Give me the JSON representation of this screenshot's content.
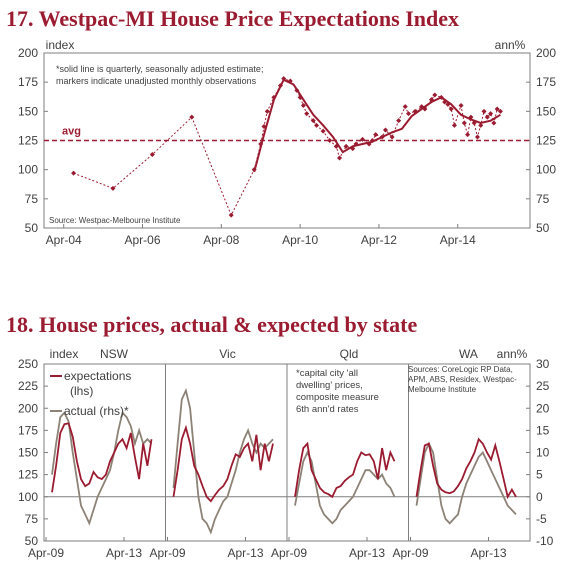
{
  "colors": {
    "title": "#9b1b30",
    "expectations": "#9b1b30",
    "actual": "#8c8276",
    "axis": "#7f7f7f"
  },
  "chart_data": [
    {
      "type": "line",
      "title": "17. Westpac-MI House Price Expectations Index",
      "ylabel_left": "index",
      "ylabel_right": "ann%",
      "ylim": [
        50,
        200
      ],
      "yticks": [
        50,
        75,
        100,
        125,
        150,
        175,
        200
      ],
      "xticks": [
        "Apr-04",
        "Apr-06",
        "Apr-08",
        "Apr-10",
        "Apr-12",
        "Apr-14"
      ],
      "xlim": [
        "2003-10",
        "2016-02"
      ],
      "note": "*solid line is quarterly, seasonally adjusted estimate; markers indicate unadjusted monthly observations",
      "avg_label": "avg",
      "avg_value": 125,
      "source": "Source: Westpac-Melbourne Institute",
      "series": [
        {
          "style": "dashed-markers",
          "x": [
            "2004-07",
            "2005-07",
            "2006-07",
            "2007-07",
            "2008-07",
            "2009-02",
            "2009-04",
            "2009-05",
            "2009-06",
            "2009-08",
            "2009-10",
            "2009-11",
            "2010-01",
            "2010-03",
            "2010-04",
            "2010-05",
            "2010-06",
            "2010-08",
            "2010-09",
            "2010-11",
            "2011-01",
            "2011-03",
            "2011-04",
            "2011-06",
            "2011-08",
            "2011-09",
            "2011-11",
            "2012-01",
            "2012-02",
            "2012-03",
            "2012-05",
            "2012-06",
            "2012-08",
            "2012-10",
            "2012-12",
            "2013-01",
            "2013-03",
            "2013-05",
            "2013-06",
            "2013-08",
            "2013-09",
            "2013-11",
            "2013-12",
            "2014-01",
            "2014-02",
            "2014-03",
            "2014-05",
            "2014-06",
            "2014-07",
            "2014-08",
            "2014-09",
            "2014-10",
            "2014-11",
            "2014-12",
            "2015-01",
            "2015-02",
            "2015-03",
            "2015-04",
            "2015-05"
          ],
          "values": [
            97,
            84,
            113,
            145,
            61,
            100,
            122,
            137,
            150,
            162,
            172,
            178,
            176,
            168,
            162,
            155,
            148,
            142,
            138,
            133,
            125,
            120,
            110,
            120,
            118,
            122,
            126,
            122,
            125,
            130,
            128,
            134,
            128,
            142,
            154,
            148,
            150,
            154,
            152,
            160,
            164,
            162,
            158,
            156,
            152,
            138,
            155,
            140,
            130,
            145,
            140,
            128,
            138,
            150,
            145,
            148,
            140,
            152,
            150
          ]
        },
        {
          "style": "solid",
          "x": [
            "2009-02",
            "2009-05",
            "2009-08",
            "2009-11",
            "2010-02",
            "2010-05",
            "2010-08",
            "2010-11",
            "2011-02",
            "2011-05",
            "2011-08",
            "2011-11",
            "2012-02",
            "2012-05",
            "2012-08",
            "2012-11",
            "2013-02",
            "2013-05",
            "2013-08",
            "2013-11",
            "2014-02",
            "2014-05",
            "2014-08",
            "2014-11",
            "2015-02",
            "2015-05"
          ],
          "values": [
            98,
            130,
            160,
            177,
            173,
            160,
            147,
            138,
            128,
            115,
            120,
            122,
            124,
            128,
            132,
            135,
            146,
            152,
            158,
            162,
            156,
            147,
            143,
            140,
            142,
            147
          ]
        }
      ]
    },
    {
      "type": "line",
      "title": "18. House prices, actual & expected by state",
      "ylabel_left": "index",
      "ylabel_right": "ann%",
      "ylim": [
        50,
        250
      ],
      "ylim_right": [
        -10,
        30
      ],
      "yticks": [
        50,
        75,
        100,
        125,
        150,
        175,
        200,
        225,
        250
      ],
      "yticks_right": [
        -10,
        -5,
        0,
        5,
        10,
        15,
        20,
        25,
        30
      ],
      "legend": [
        "expectations (lhs)",
        "actual (rhs)*"
      ],
      "note": "*capital city 'all dwelling' prices, composite measure 6th ann'd rates",
      "source": "Sources: CoreLogic RP Data, APM, ABS, Residex, Westpac-Melbourne Institute",
      "panels": [
        {
          "name": "NSW",
          "xticks": [
            "Apr-09",
            "Apr-13"
          ],
          "expectations": [
            105,
            135,
            172,
            182,
            183,
            168,
            140,
            120,
            112,
            115,
            128,
            122,
            120,
            125,
            140,
            150,
            160,
            165,
            155,
            172,
            145,
            120,
            160,
            135,
            165
          ],
          "actual": [
            5,
            12,
            18,
            19,
            17,
            10,
            4,
            -2,
            -4,
            -6,
            -3,
            0,
            2,
            4,
            6,
            10,
            15,
            19,
            18,
            16,
            12,
            15,
            12,
            13,
            12
          ]
        },
        {
          "name": "Vic",
          "xticks": [
            "Apr-09",
            "Apr-13"
          ],
          "expectations": [
            100,
            130,
            165,
            178,
            160,
            135,
            125,
            112,
            100,
            95,
            102,
            108,
            112,
            120,
            135,
            148,
            145,
            155,
            160,
            140,
            170,
            130,
            160,
            140,
            160
          ],
          "actual": [
            2,
            12,
            22,
            24,
            20,
            10,
            0,
            -5,
            -6,
            -8,
            -5,
            -3,
            -1,
            0,
            3,
            6,
            10,
            13,
            15,
            12,
            10,
            12,
            11,
            12,
            13
          ]
        },
        {
          "name": "Qld",
          "xticks": [
            "Apr-09",
            "Apr-13"
          ],
          "expectations": [
            100,
            130,
            155,
            160,
            130,
            120,
            110,
            105,
            103,
            100,
            110,
            112,
            118,
            122,
            125,
            140,
            150,
            147,
            148,
            140,
            120,
            155,
            130,
            150,
            140
          ],
          "actual": [
            -2,
            3,
            8,
            10,
            8,
            3,
            -2,
            -4,
            -5,
            -6,
            -5,
            -3,
            -2,
            -1,
            0,
            2,
            4,
            6,
            6,
            5,
            4,
            5,
            3,
            2,
            0
          ]
        },
        {
          "name": "WA",
          "xticks": [
            "Apr-09",
            "Apr-13"
          ],
          "expectations": [
            100,
            130,
            158,
            160,
            135,
            115,
            108,
            105,
            104,
            106,
            112,
            120,
            132,
            140,
            150,
            165,
            160,
            150,
            142,
            158,
            140,
            120,
            100,
            108,
            100
          ],
          "actual": [
            -2,
            4,
            10,
            12,
            10,
            4,
            -2,
            -5,
            -6,
            -5,
            -4,
            0,
            3,
            5,
            7,
            9,
            10,
            8,
            6,
            4,
            2,
            0,
            -2,
            -3,
            -4
          ]
        }
      ]
    }
  ]
}
